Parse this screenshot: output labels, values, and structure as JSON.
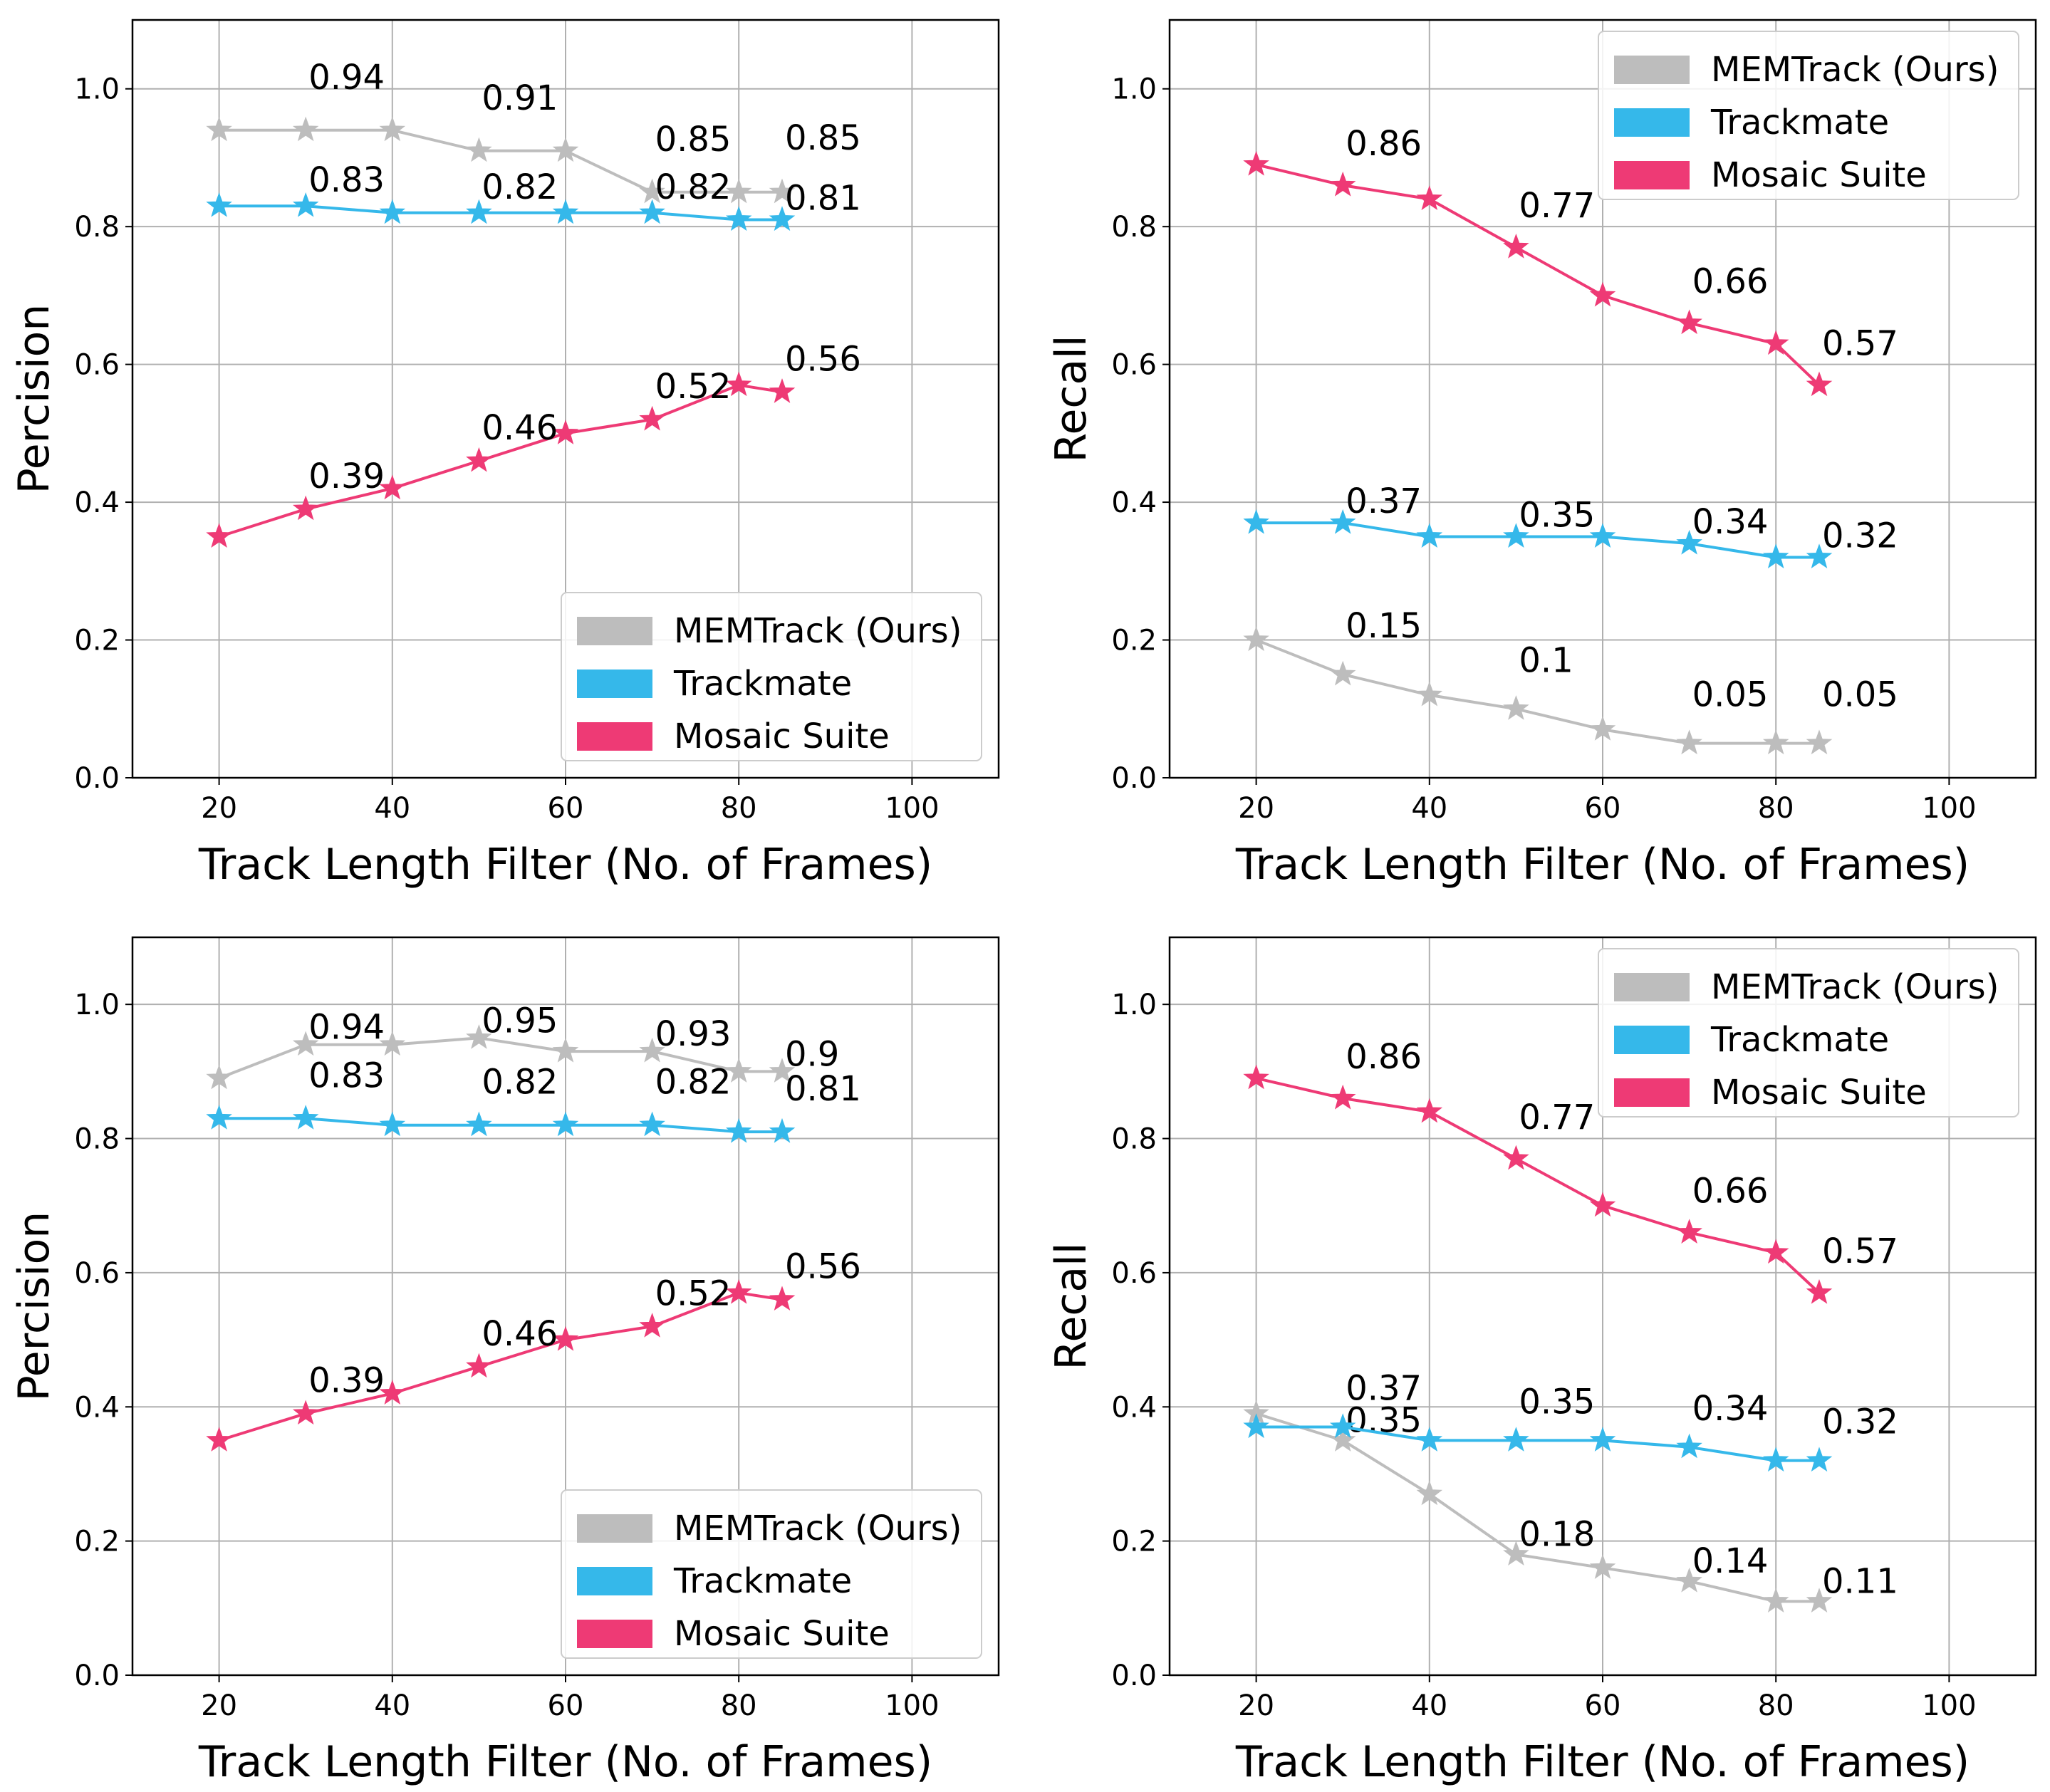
{
  "colors": {
    "memtrack": "#bdbdbd",
    "trackmate": "#35b8ea",
    "mosaic": "#ee3a75",
    "grid": "#b0b0b0",
    "frame": "#000000"
  },
  "chart_data": [
    {
      "type": "line",
      "xlabel": "Track Length Filter (No. of Frames)",
      "ylabel": "Percision",
      "xlim": [
        10,
        110
      ],
      "ylim": [
        0,
        1.1
      ],
      "xticks": [
        "20",
        "40",
        "60",
        "80",
        "100"
      ],
      "yticks": [
        "0.0",
        "0.2",
        "0.4",
        "0.6",
        "0.8",
        "1.0"
      ],
      "grid": true,
      "legend_position": "lower-right",
      "marker": "star",
      "x": [
        20,
        30,
        40,
        50,
        60,
        70,
        80,
        85
      ],
      "series": [
        {
          "name": "MEMTrack (Ours)",
          "color_key": "memtrack",
          "values": [
            0.94,
            0.94,
            0.94,
            0.91,
            0.91,
            0.85,
            0.85,
            0.85
          ],
          "data_labels": [
            {
              "x": 30,
              "text": "0.94"
            },
            {
              "x": 50,
              "text": "0.91"
            },
            {
              "x": 70,
              "text": "0.85"
            },
            {
              "x": 85,
              "text": "0.85"
            }
          ]
        },
        {
          "name": "Trackmate",
          "color_key": "trackmate",
          "values": [
            0.83,
            0.83,
            0.82,
            0.82,
            0.82,
            0.82,
            0.81,
            0.81
          ],
          "data_labels": [
            {
              "x": 30,
              "text": "0.83"
            },
            {
              "x": 50,
              "text": "0.82"
            },
            {
              "x": 70,
              "text": "0.82"
            },
            {
              "x": 85,
              "text": "0.81"
            }
          ]
        },
        {
          "name": "Mosaic Suite",
          "color_key": "mosaic",
          "values": [
            0.35,
            0.39,
            0.42,
            0.46,
            0.5,
            0.52,
            0.57,
            0.56
          ],
          "data_labels": [
            {
              "x": 30,
              "text": "0.39"
            },
            {
              "x": 50,
              "text": "0.46"
            },
            {
              "x": 70,
              "text": "0.52"
            },
            {
              "x": 85,
              "text": "0.56"
            }
          ]
        }
      ]
    },
    {
      "type": "line",
      "xlabel": "Track Length Filter (No. of Frames)",
      "ylabel": "Recall",
      "xlim": [
        10,
        110
      ],
      "ylim": [
        0,
        1.1
      ],
      "xticks": [
        "20",
        "40",
        "60",
        "80",
        "100"
      ],
      "yticks": [
        "0.0",
        "0.2",
        "0.4",
        "0.6",
        "0.8",
        "1.0"
      ],
      "grid": true,
      "legend_position": "upper-right",
      "marker": "star",
      "x": [
        20,
        30,
        40,
        50,
        60,
        70,
        80,
        85
      ],
      "series": [
        {
          "name": "MEMTrack (Ours)",
          "color_key": "memtrack",
          "values": [
            0.2,
            0.15,
            0.12,
            0.1,
            0.07,
            0.05,
            0.05,
            0.05
          ],
          "data_labels": [
            {
              "x": 30,
              "text": "0.15"
            },
            {
              "x": 50,
              "text": "0.1"
            },
            {
              "x": 70,
              "text": "0.05"
            },
            {
              "x": 85,
              "text": "0.05"
            }
          ]
        },
        {
          "name": "Trackmate",
          "color_key": "trackmate",
          "values": [
            0.37,
            0.37,
            0.35,
            0.35,
            0.35,
            0.34,
            0.32,
            0.32
          ],
          "data_labels": [
            {
              "x": 30,
              "text": "0.37"
            },
            {
              "x": 50,
              "text": "0.35"
            },
            {
              "x": 70,
              "text": "0.34"
            },
            {
              "x": 85,
              "text": "0.32"
            }
          ]
        },
        {
          "name": "Mosaic Suite",
          "color_key": "mosaic",
          "values": [
            0.89,
            0.86,
            0.84,
            0.77,
            0.7,
            0.66,
            0.63,
            0.57
          ],
          "data_labels": [
            {
              "x": 30,
              "text": "0.86"
            },
            {
              "x": 50,
              "text": "0.77"
            },
            {
              "x": 70,
              "text": "0.66"
            },
            {
              "x": 85,
              "text": "0.57"
            }
          ]
        }
      ]
    },
    {
      "type": "line",
      "xlabel": "Track Length Filter (No. of Frames)",
      "ylabel": "Percision",
      "xlim": [
        10,
        110
      ],
      "ylim": [
        0,
        1.1
      ],
      "xticks": [
        "20",
        "40",
        "60",
        "80",
        "100"
      ],
      "yticks": [
        "0.0",
        "0.2",
        "0.4",
        "0.6",
        "0.8",
        "1.0"
      ],
      "grid": true,
      "legend_position": "lower-right",
      "marker": "star",
      "x": [
        20,
        30,
        40,
        50,
        60,
        70,
        80,
        85
      ],
      "series": [
        {
          "name": "MEMTrack (Ours)",
          "color_key": "memtrack",
          "values": [
            0.89,
            0.94,
            0.94,
            0.95,
            0.93,
            0.93,
            0.9,
            0.9
          ],
          "data_labels": [
            {
              "x": 30,
              "text": "0.94"
            },
            {
              "x": 50,
              "text": "0.95"
            },
            {
              "x": 70,
              "text": "0.93"
            },
            {
              "x": 85,
              "text": "0.9"
            }
          ]
        },
        {
          "name": "Trackmate",
          "color_key": "trackmate",
          "values": [
            0.83,
            0.83,
            0.82,
            0.82,
            0.82,
            0.82,
            0.81,
            0.81
          ],
          "data_labels": [
            {
              "x": 30,
              "text": "0.83"
            },
            {
              "x": 50,
              "text": "0.82"
            },
            {
              "x": 70,
              "text": "0.82"
            },
            {
              "x": 85,
              "text": "0.81"
            }
          ]
        },
        {
          "name": "Mosaic Suite",
          "color_key": "mosaic",
          "values": [
            0.35,
            0.39,
            0.42,
            0.46,
            0.5,
            0.52,
            0.57,
            0.56
          ],
          "data_labels": [
            {
              "x": 30,
              "text": "0.39"
            },
            {
              "x": 50,
              "text": "0.46"
            },
            {
              "x": 70,
              "text": "0.52"
            },
            {
              "x": 85,
              "text": "0.56"
            }
          ]
        }
      ]
    },
    {
      "type": "line",
      "xlabel": "Track Length Filter (No. of Frames)",
      "ylabel": "Recall",
      "xlim": [
        10,
        110
      ],
      "ylim": [
        0,
        1.1
      ],
      "xticks": [
        "20",
        "40",
        "60",
        "80",
        "100"
      ],
      "yticks": [
        "0.0",
        "0.2",
        "0.4",
        "0.6",
        "0.8",
        "1.0"
      ],
      "grid": true,
      "legend_position": "upper-right",
      "marker": "star",
      "x": [
        20,
        30,
        40,
        50,
        60,
        70,
        80,
        85
      ],
      "series": [
        {
          "name": "MEMTrack (Ours)",
          "color_key": "memtrack",
          "values": [
            0.39,
            0.35,
            0.27,
            0.18,
            0.16,
            0.14,
            0.11,
            0.11
          ],
          "data_labels": [
            {
              "x": 30,
              "text": "0.35"
            },
            {
              "x": 50,
              "text": "0.18"
            },
            {
              "x": 70,
              "text": "0.14"
            },
            {
              "x": 85,
              "text": "0.11"
            }
          ]
        },
        {
          "name": "Trackmate",
          "color_key": "trackmate",
          "values": [
            0.37,
            0.37,
            0.35,
            0.35,
            0.35,
            0.34,
            0.32,
            0.32
          ],
          "data_labels": [
            {
              "x": 30,
              "text": "0.37"
            },
            {
              "x": 50,
              "text": "0.35"
            },
            {
              "x": 70,
              "text": "0.34"
            },
            {
              "x": 85,
              "text": "0.32"
            }
          ]
        },
        {
          "name": "Mosaic Suite",
          "color_key": "mosaic",
          "values": [
            0.89,
            0.86,
            0.84,
            0.77,
            0.7,
            0.66,
            0.63,
            0.57
          ],
          "data_labels": [
            {
              "x": 30,
              "text": "0.86"
            },
            {
              "x": 50,
              "text": "0.77"
            },
            {
              "x": 70,
              "text": "0.66"
            },
            {
              "x": 85,
              "text": "0.57"
            }
          ]
        }
      ]
    }
  ]
}
